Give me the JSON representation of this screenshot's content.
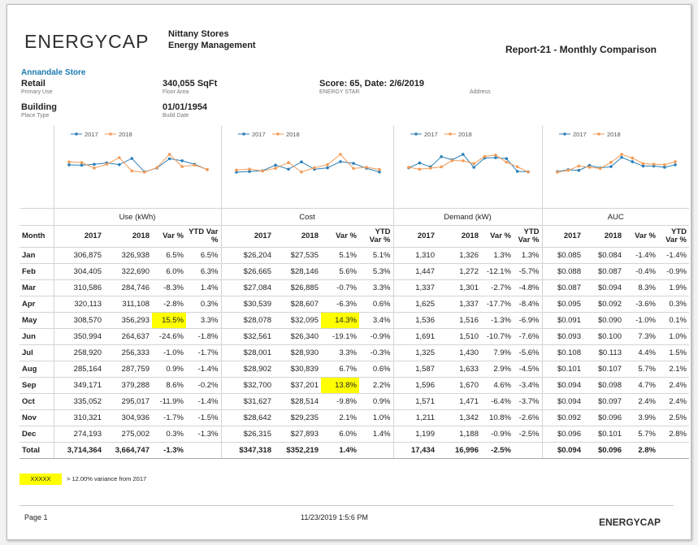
{
  "header": {
    "logo": "ENERGYCAP",
    "company": "Nittany Stores",
    "subtitle": "Energy Management",
    "report": "Report-21 - Monthly Comparison"
  },
  "store": {
    "name": "Annandale Store",
    "fields": [
      {
        "value": "Retail",
        "label": "Primary Use"
      },
      {
        "value": "340,055 SqFt",
        "label": "Floor Area"
      },
      {
        "value": "Score: 65, Date: 2/6/2019",
        "label": "ENERGY STAR"
      },
      {
        "label": "Address"
      },
      {
        "value": "Building",
        "label": "Place Type"
      },
      {
        "value": "01/01/1954",
        "label": "Build Date"
      }
    ]
  },
  "legend": [
    {
      "name": "2017",
      "color": "#2b7fb8"
    },
    {
      "name": "2018",
      "color": "#f39a55"
    }
  ],
  "groups": [
    "Use (kWh)",
    "Cost",
    "Demand (kW)",
    "AUC"
  ],
  "month_head": "Month",
  "subcolumns": [
    "2017",
    "2018",
    "Var %",
    "YTD Var %"
  ],
  "rows": [
    [
      "Jan",
      "306,875",
      "326,938",
      "6.5%",
      "6.5%",
      "$26,204",
      "$27,535",
      "5.1%",
      "5.1%",
      "1,310",
      "1,326",
      "1.3%",
      "1.3%",
      "$0.085",
      "$0.084",
      "-1.4%",
      "-1.4%"
    ],
    [
      "Feb",
      "304,405",
      "322,690",
      "6.0%",
      "6.3%",
      "$26,665",
      "$28,146",
      "5.6%",
      "5.3%",
      "1,447",
      "1,272",
      "-12.1%",
      "-5.7%",
      "$0.088",
      "$0.087",
      "-0.4%",
      "-0.9%"
    ],
    [
      "Mar",
      "310,586",
      "284,746",
      "-8.3%",
      "1.4%",
      "$27,084",
      "$26,885",
      "-0.7%",
      "3.3%",
      "1,337",
      "1,301",
      "-2.7%",
      "-4.8%",
      "$0.087",
      "$0.094",
      "8.3%",
      "1.9%"
    ],
    [
      "Apr",
      "320,113",
      "311,108",
      "-2.8%",
      "0.3%",
      "$30,539",
      "$28,607",
      "-6.3%",
      "0.6%",
      "1,625",
      "1,337",
      "-17.7%",
      "-8.4%",
      "$0.095",
      "$0.092",
      "-3.6%",
      "0.3%"
    ],
    [
      "May",
      "308,570",
      "356,293",
      "15.5%",
      "3.3%",
      "$28,078",
      "$32,095",
      "14.3%",
      "3.4%",
      "1,536",
      "1,516",
      "-1.3%",
      "-6.9%",
      "$0.091",
      "$0.090",
      "-1.0%",
      "0.1%"
    ],
    [
      "Jun",
      "350,994",
      "264,637",
      "-24.6%",
      "-1.8%",
      "$32,561",
      "$26,340",
      "-19.1%",
      "-0.9%",
      "1,691",
      "1,510",
      "-10.7%",
      "-7.6%",
      "$0.093",
      "$0.100",
      "7.3%",
      "1.0%"
    ],
    [
      "Jul",
      "258,920",
      "256,333",
      "-1.0%",
      "-1.7%",
      "$28,001",
      "$28,930",
      "3.3%",
      "-0.3%",
      "1,325",
      "1,430",
      "7.9%",
      "-5.6%",
      "$0.108",
      "$0.113",
      "4.4%",
      "1.5%"
    ],
    [
      "Aug",
      "285,164",
      "287,759",
      "0.9%",
      "-1.4%",
      "$28,902",
      "$30,839",
      "6.7%",
      "0.6%",
      "1,587",
      "1,633",
      "2.9%",
      "-4.5%",
      "$0.101",
      "$0.107",
      "5.7%",
      "2.1%"
    ],
    [
      "Sep",
      "349,171",
      "379,288",
      "8.6%",
      "-0.2%",
      "$32,700",
      "$37,201",
      "13.8%",
      "2.2%",
      "1,596",
      "1,670",
      "4.6%",
      "-3.4%",
      "$0.094",
      "$0.098",
      "4.7%",
      "2.4%"
    ],
    [
      "Oct",
      "335,052",
      "295,017",
      "-11.9%",
      "-1.4%",
      "$31,627",
      "$28,514",
      "-9.8%",
      "0.9%",
      "1,571",
      "1,471",
      "-6.4%",
      "-3.7%",
      "$0.094",
      "$0.097",
      "2.4%",
      "2.4%"
    ],
    [
      "Nov",
      "310,321",
      "304,936",
      "-1.7%",
      "-1.5%",
      "$28,642",
      "$29,235",
      "2.1%",
      "1.0%",
      "1,211",
      "1,342",
      "10.8%",
      "-2.6%",
      "$0.092",
      "$0.096",
      "3.9%",
      "2.5%"
    ],
    [
      "Dec",
      "274,193",
      "275,002",
      "0.3%",
      "-1.3%",
      "$26,315",
      "$27,893",
      "6.0%",
      "1.4%",
      "1,199",
      "1,188",
      "-0.9%",
      "-2.5%",
      "$0.096",
      "$0.101",
      "5.7%",
      "2.8%"
    ]
  ],
  "total": [
    "Total",
    "3,714,364",
    "3,664,747",
    "-1.3%",
    null,
    "$347,318",
    "$352,219",
    "1.4%",
    null,
    "17,434",
    "16,996",
    "-2.5%",
    null,
    "$0.094",
    "$0.096",
    "2.8%",
    null
  ],
  "highlight_color": "#ffff00",
  "highlight_cells": [
    [
      4,
      3
    ],
    [
      4,
      7
    ],
    [
      8,
      7
    ]
  ],
  "footnote": {
    "swatch": "XXXXX",
    "text": "> 12.00% variance from 2017"
  },
  "footer": {
    "page": "Page 1",
    "date": "11/23/2019 1:5:6 PM",
    "logo": "ENERGYCAP"
  }
}
